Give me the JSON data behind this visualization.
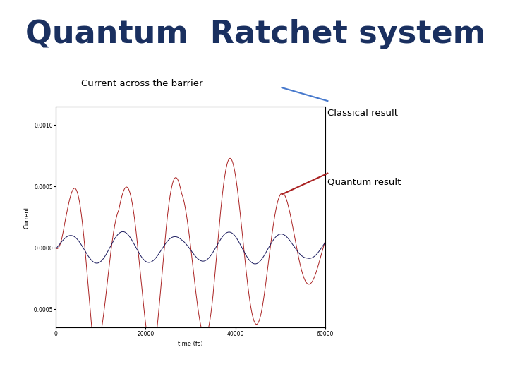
{
  "title": "Quantum  Ratchet system",
  "title_color": "#1a3060",
  "title_fontsize": 32,
  "title_fontweight": "bold",
  "plot_label": "Current across the barrier",
  "classical_label": "Classical result",
  "quantum_label": "Quantum result",
  "xlabel": "time (fs)",
  "ylabel": "Current",
  "xlim": [
    0,
    60000
  ],
  "ylim": [
    -0.00065,
    0.00115
  ],
  "yticks": [
    -0.0005,
    0.0,
    0.0005,
    0.001
  ],
  "xticks": [
    0,
    20000,
    40000,
    60000
  ],
  "classical_color": "#aa2222",
  "quantum_color": "#1a1a5e",
  "background_color": "#ffffff",
  "arrow_classical_color": "#4477cc",
  "arrow_quantum_color": "#aa2222"
}
